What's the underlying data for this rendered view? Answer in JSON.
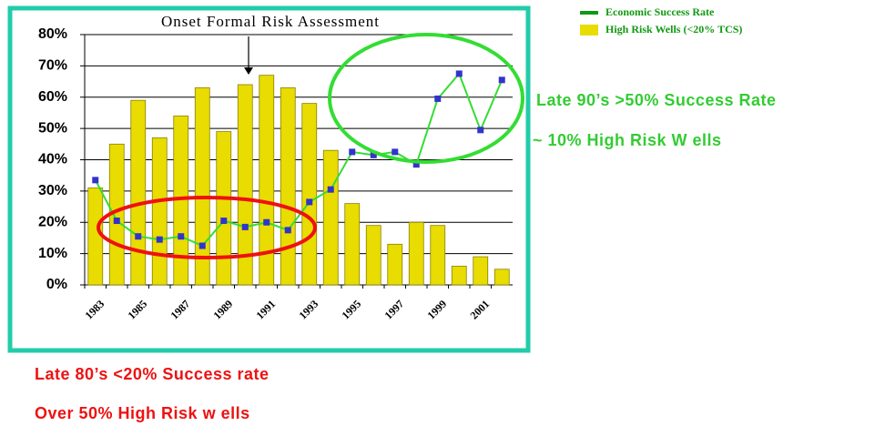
{
  "chart_data": {
    "type": "bar",
    "title": "Onset Formal Risk Assessment",
    "categories": [
      "1983",
      null,
      "1985",
      null,
      "1987",
      null,
      "1989",
      null,
      "1991",
      null,
      "1993",
      null,
      "1995",
      null,
      "1997",
      null,
      "1999",
      null,
      "2001",
      null
    ],
    "series": [
      {
        "name": "High Risk Wells (<20% TCS)",
        "type": "bar",
        "color": "#e8dc00",
        "values": [
          31,
          45,
          59,
          47,
          54,
          63,
          49,
          64,
          67,
          63,
          58,
          43,
          26,
          19,
          13,
          20,
          19,
          6,
          9,
          5
        ]
      },
      {
        "name": "Economic Success Rate",
        "type": "line",
        "color": "#33dd33",
        "marker_color": "#3333cc",
        "values": [
          33.5,
          20.5,
          15.5,
          14.5,
          15.5,
          12.5,
          20.5,
          18.5,
          20,
          17.5,
          26.5,
          30.5,
          42.5,
          41.5,
          42.5,
          38.5,
          59.5,
          67.5,
          49.5,
          65.5
        ]
      }
    ],
    "ylim": [
      0,
      80
    ],
    "yticks": [
      {
        "value": 0,
        "label": "0%"
      },
      {
        "value": 10,
        "label": "10%"
      },
      {
        "value": 20,
        "label": "20%"
      },
      {
        "value": 30,
        "label": "30%"
      },
      {
        "value": 40,
        "label": "40%"
      },
      {
        "value": 50,
        "label": "50%"
      },
      {
        "value": 60,
        "label": "60%"
      },
      {
        "value": 70,
        "label": "70%"
      },
      {
        "value": 80,
        "label": "80%"
      }
    ],
    "grid": true,
    "annotations": [
      "Late 90’s >50% Success Rate",
      "~ 10% High Risk W ells",
      "Late 80’s <20% Success rate",
      "Over 50% High Risk w ells"
    ]
  }
}
